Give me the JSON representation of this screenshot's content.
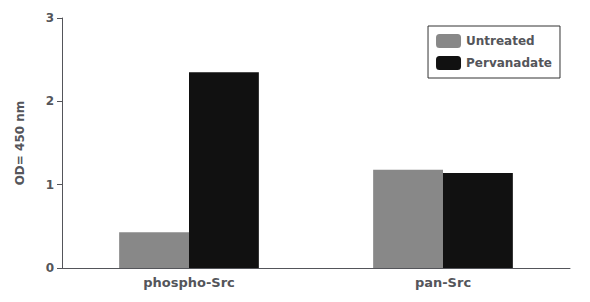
{
  "chart_data": {
    "type": "bar",
    "categories": [
      "phospho-Src",
      "pan-Src"
    ],
    "series": [
      {
        "name": "Untreated",
        "color": "#888888",
        "values": [
          0.43,
          1.18
        ]
      },
      {
        "name": "Pervanadate",
        "color": "#111111",
        "values": [
          2.35,
          1.14
        ]
      }
    ],
    "ylabel": "OD= 450 nm",
    "ylim": [
      0,
      3
    ],
    "yticks": [
      0,
      1,
      2,
      3
    ],
    "grid": false,
    "legend": "upper right"
  }
}
